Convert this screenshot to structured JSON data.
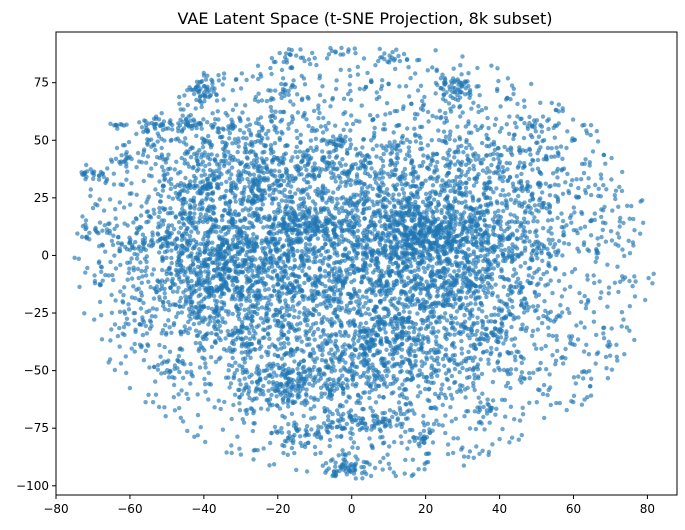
{
  "chart_data": {
    "type": "scatter",
    "title": "VAE Latent Space (t-SNE Projection, 8k subset)",
    "xlabel": "",
    "ylabel": "",
    "xlim": [
      -80,
      88
    ],
    "ylim": [
      -104,
      97
    ],
    "xticks": [
      -80,
      -60,
      -40,
      -20,
      0,
      20,
      40,
      60,
      80
    ],
    "yticks": [
      -100,
      -75,
      -50,
      -25,
      0,
      25,
      50,
      75
    ],
    "grid": false,
    "legend": false,
    "point_count": 8000,
    "marker_color": "#1f77b4",
    "marker_opacity": 0.65,
    "density_regions": [
      {
        "cx": -35,
        "cy": -5,
        "sx": 14,
        "sy": 18,
        "weight": 0.2
      },
      {
        "cx": 23,
        "cy": 8,
        "sx": 15,
        "sy": 14,
        "weight": 0.16
      },
      {
        "cx": -5,
        "cy": 5,
        "sx": 20,
        "sy": 22,
        "weight": 0.14
      },
      {
        "cx": 5,
        "cy": -25,
        "sx": 20,
        "sy": 20,
        "weight": 0.12
      },
      {
        "cx": 30,
        "cy": -25,
        "sx": 18,
        "sy": 16,
        "weight": 0.08
      },
      {
        "cx": -25,
        "cy": 30,
        "sx": 16,
        "sy": 14,
        "weight": 0.08
      },
      {
        "cx": 20,
        "cy": 40,
        "sx": 20,
        "sy": 16,
        "weight": 0.06
      },
      {
        "cx": 5,
        "cy": -55,
        "sx": 16,
        "sy": 14,
        "weight": 0.05
      },
      {
        "cx": -20,
        "cy": -50,
        "sx": 12,
        "sy": 12,
        "weight": 0.04
      },
      {
        "cx": -35,
        "cy": 50,
        "sx": 12,
        "sy": 10,
        "weight": 0.03
      },
      {
        "cx": 45,
        "cy": 25,
        "sx": 14,
        "sy": 18,
        "weight": 0.04
      }
    ],
    "scatter_envelope": {
      "x_range": [
        -75,
        82
      ],
      "y_range": [
        -97,
        92
      ]
    },
    "clusters": [
      {
        "cx": -50,
        "cy": 57,
        "sx": 6,
        "sy": 1.2,
        "n": 50
      },
      {
        "cx": -63,
        "cy": 57,
        "sx": 1.2,
        "sy": 1,
        "n": 8
      },
      {
        "cx": -40,
        "cy": 72,
        "sx": 2.5,
        "sy": 3,
        "n": 45
      },
      {
        "cx": -70,
        "cy": 35,
        "sx": 2,
        "sy": 1.5,
        "n": 25
      },
      {
        "cx": 28,
        "cy": 73,
        "sx": 3,
        "sy": 3,
        "n": 60
      },
      {
        "cx": -18,
        "cy": -55,
        "sx": 3,
        "sy": 3.5,
        "n": 55
      },
      {
        "cx": 8,
        "cy": -40,
        "sx": 3,
        "sy": 4,
        "n": 50
      },
      {
        "cx": 0,
        "cy": -92,
        "sx": 4.5,
        "sy": 2,
        "n": 55
      },
      {
        "cx": -3,
        "cy": -73,
        "sx": 3,
        "sy": 3,
        "n": 30
      },
      {
        "cx": 8,
        "cy": -72,
        "sx": 3,
        "sy": 2,
        "n": 25
      },
      {
        "cx": -15,
        "cy": -78,
        "sx": 3,
        "sy": 2,
        "n": 25
      },
      {
        "cx": 19,
        "cy": -80,
        "sx": 2,
        "sy": 1.5,
        "n": 20
      },
      {
        "cx": -12,
        "cy": 14,
        "sx": 5,
        "sy": 3,
        "n": 80
      },
      {
        "cx": 20,
        "cy": 11,
        "sx": 6,
        "sy": 5,
        "n": 90
      },
      {
        "cx": 10,
        "cy": 85,
        "sx": 3,
        "sy": 2,
        "n": 15
      },
      {
        "cx": -17,
        "cy": 86,
        "sx": 2.5,
        "sy": 2,
        "n": 15
      },
      {
        "cx": -2,
        "cy": 89,
        "sx": 2,
        "sy": 1,
        "n": 8
      },
      {
        "cx": -4,
        "cy": 48,
        "sx": 2.5,
        "sy": 2,
        "n": 25
      },
      {
        "cx": -58,
        "cy": 5,
        "sx": 3,
        "sy": 3,
        "n": 20
      },
      {
        "cx": -40,
        "cy": 30,
        "sx": 3,
        "sy": 3,
        "n": 30
      },
      {
        "cx": -18,
        "cy": 73,
        "sx": 2,
        "sy": 2,
        "n": 15
      },
      {
        "cx": 50,
        "cy": 57,
        "sx": 2.5,
        "sy": 1.5,
        "n": 15
      },
      {
        "cx": 37,
        "cy": -65,
        "sx": 2,
        "sy": 2,
        "n": 12
      },
      {
        "cx": 38,
        "cy": -33,
        "sx": 3,
        "sy": 3,
        "n": 25
      },
      {
        "cx": -49,
        "cy": -50,
        "sx": 2.5,
        "sy": 3,
        "n": 15
      },
      {
        "cx": -62,
        "cy": 42,
        "sx": 2,
        "sy": 1,
        "n": 10
      }
    ]
  }
}
